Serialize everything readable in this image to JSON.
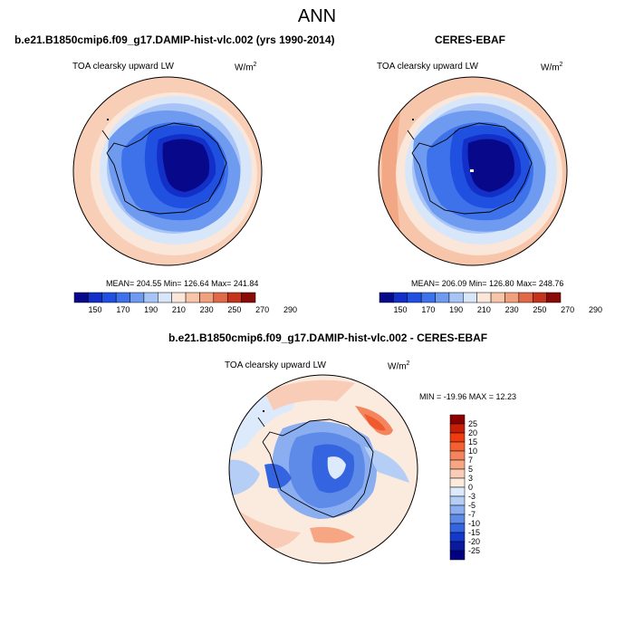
{
  "page": {
    "title": "ANN"
  },
  "panels": [
    {
      "header": "b.e21.B1850cmip6.f09_g17.DAMIP-hist-vlc.002 (yrs 1990-2014)",
      "variable": "TOA clearsky upward LW",
      "units_base": "W/m",
      "units_exp": "2",
      "stats": "MEAN= 204.55  Min= 126.64  Max= 241.84",
      "colorbar_ticks": [
        "150",
        "170",
        "190",
        "210",
        "230",
        "250",
        "270",
        "290"
      ]
    },
    {
      "header": "CERES-EBAF",
      "variable": "TOA clearsky upward LW",
      "units_base": "W/m",
      "units_exp": "2",
      "stats": "MEAN= 206.09  Min= 126.80  Max= 248.76",
      "colorbar_ticks": [
        "150",
        "170",
        "190",
        "210",
        "230",
        "250",
        "270",
        "290"
      ]
    },
    {
      "header": "b.e21.B1850cmip6.f09_g17.DAMIP-hist-vlc.002 - CERES-EBAF",
      "variable": "TOA clearsky upward LW",
      "units_base": "W/m",
      "units_exp": "2",
      "stats": "MIN = -19.96 MAX =  12.23",
      "colorbar_ticks": [
        "25",
        "20",
        "15",
        "10",
        "7",
        "5",
        "3",
        "0",
        "-3",
        "-5",
        "-7",
        "-10",
        "-15",
        "-20",
        "-25"
      ]
    }
  ],
  "colors": {
    "abs_scale": [
      "#08088a",
      "#1230c8",
      "#2050e0",
      "#3d72ea",
      "#6e9af0",
      "#a8c4f6",
      "#d8e6fa",
      "#fbe6da",
      "#f7c6aa",
      "#f0a07c",
      "#e06a48",
      "#c4341c",
      "#8a0a08"
    ],
    "diff_scale": [
      "#8a0000",
      "#c81e08",
      "#ee3c10",
      "#f46030",
      "#f4845c",
      "#f6a682",
      "#f8ccb6",
      "#fbeade",
      "#dceafc",
      "#b4cef6",
      "#8aaef0",
      "#5e8ae8",
      "#3464e0",
      "#1438cc",
      "#0a1aa0",
      "#000080"
    ]
  }
}
